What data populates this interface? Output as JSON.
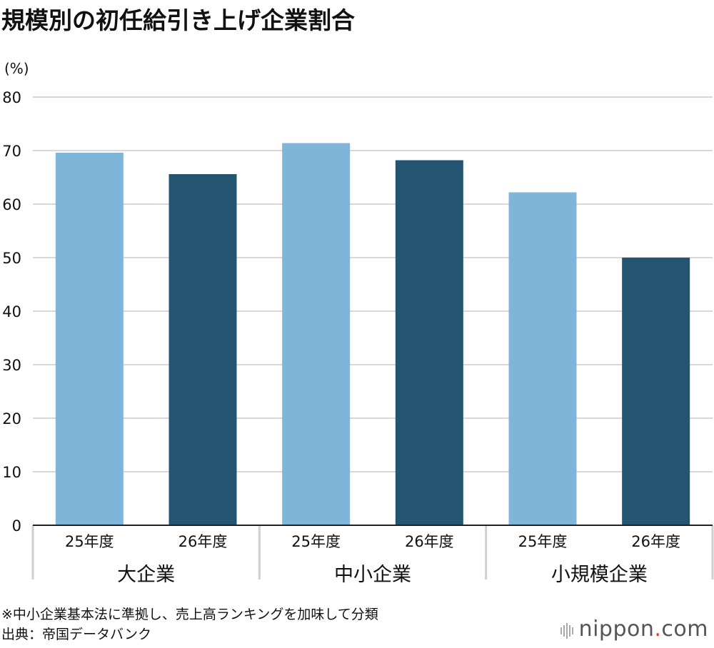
{
  "title": "規模別の初任給引き上げ企業割合",
  "unit_label": "(%)",
  "notes": [
    "※中小企業基本法に準拠し、売上高ランキングを加味して分類",
    "出典：帝国データバンク"
  ],
  "brand": {
    "name": "nippon",
    "dot": ".",
    "tld": "com"
  },
  "colors": {
    "fy25": "#7eb5d8",
    "fy26": "#235571",
    "grid": "#cccccc"
  },
  "chart_data": {
    "type": "bar",
    "ylim": [
      0,
      80
    ],
    "yticks": [
      0,
      10,
      20,
      30,
      40,
      50,
      60,
      70,
      80
    ],
    "grid": true,
    "groups": [
      {
        "name": "大企業",
        "bars": [
          {
            "label": "25年度",
            "value": 69.6
          },
          {
            "label": "26年度",
            "value": 65.6
          }
        ]
      },
      {
        "name": "中小企業",
        "bars": [
          {
            "label": "25年度",
            "value": 71.4
          },
          {
            "label": "26年度",
            "value": 68.2
          }
        ]
      },
      {
        "name": "小規模企業",
        "bars": [
          {
            "label": "25年度",
            "value": 62.2
          },
          {
            "label": "26年度",
            "value": 50.0
          }
        ]
      }
    ]
  }
}
